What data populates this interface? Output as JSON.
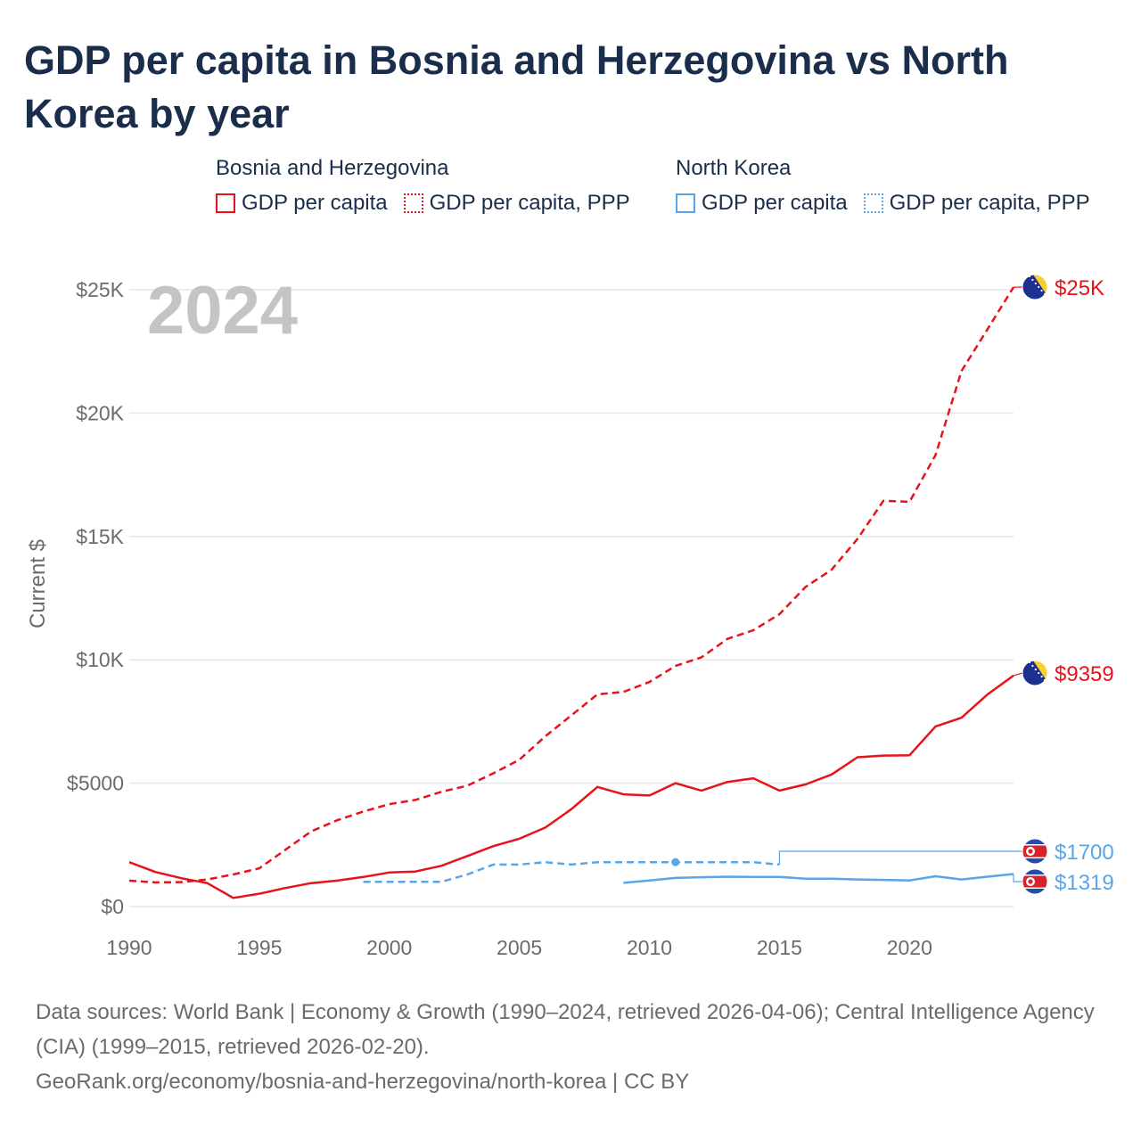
{
  "title": "GDP per capita in Bosnia and Herzegovina vs North Korea by year",
  "legend": {
    "groups": [
      {
        "country": "Bosnia and Herzegovina",
        "color": "#e8121a",
        "items": [
          {
            "label": "GDP per capita",
            "style": "solid"
          },
          {
            "label": "GDP per capita, PPP",
            "style": "dotted"
          }
        ]
      },
      {
        "country": "North Korea",
        "color": "#5aa5e8",
        "items": [
          {
            "label": "GDP per capita",
            "style": "solid"
          },
          {
            "label": "GDP per capita, PPP",
            "style": "dotted"
          }
        ]
      }
    ]
  },
  "chart_data": {
    "type": "line",
    "year_label": "2024",
    "ylabel": "Current $",
    "xlim": [
      1990,
      2024
    ],
    "ylim": [
      0,
      25000
    ],
    "x_ticks": [
      1990,
      1995,
      2000,
      2005,
      2010,
      2015,
      2020
    ],
    "x_tick_labels": [
      "1990",
      "1995",
      "2000",
      "2005",
      "2010",
      "2015",
      "2020"
    ],
    "y_ticks": [
      0,
      5000,
      10000,
      15000,
      20000,
      25000
    ],
    "y_tick_labels": [
      "$0",
      "$5000",
      "$10K",
      "$15K",
      "$20K",
      "$25K"
    ],
    "grid": true,
    "series": [
      {
        "name": "Bosnia and Herzegovina — GDP per capita, PPP",
        "color": "#e8121a",
        "dash": true,
        "end_label": "$25K",
        "flag": "bosnia-flag",
        "points": [
          [
            1990,
            1050
          ],
          [
            1991,
            980
          ],
          [
            1992,
            990
          ],
          [
            1993,
            1100
          ],
          [
            1994,
            1300
          ],
          [
            1995,
            1550
          ],
          [
            1996,
            2300
          ],
          [
            1997,
            3050
          ],
          [
            1998,
            3500
          ],
          [
            1999,
            3850
          ],
          [
            2000,
            4150
          ],
          [
            2001,
            4320
          ],
          [
            2002,
            4650
          ],
          [
            2003,
            4900
          ],
          [
            2004,
            5400
          ],
          [
            2005,
            5950
          ],
          [
            2006,
            6900
          ],
          [
            2007,
            7750
          ],
          [
            2008,
            8600
          ],
          [
            2009,
            8700
          ],
          [
            2010,
            9100
          ],
          [
            2011,
            9750
          ],
          [
            2012,
            10100
          ],
          [
            2013,
            10850
          ],
          [
            2014,
            11200
          ],
          [
            2015,
            11850
          ],
          [
            2016,
            12950
          ],
          [
            2017,
            13650
          ],
          [
            2018,
            14900
          ],
          [
            2019,
            16450
          ],
          [
            2020,
            16400
          ],
          [
            2021,
            18300
          ],
          [
            2022,
            21700
          ],
          [
            2023,
            23400
          ],
          [
            2024,
            25100
          ]
        ]
      },
      {
        "name": "Bosnia and Herzegovina — GDP per capita",
        "color": "#e8121a",
        "dash": false,
        "end_label": "$9359",
        "flag": "bosnia-flag",
        "points": [
          [
            1990,
            1800
          ],
          [
            1991,
            1400
          ],
          [
            1992,
            1150
          ],
          [
            1993,
            950
          ],
          [
            1994,
            350
          ],
          [
            1995,
            520
          ],
          [
            1996,
            750
          ],
          [
            1997,
            950
          ],
          [
            1998,
            1050
          ],
          [
            1999,
            1200
          ],
          [
            2000,
            1380
          ],
          [
            2001,
            1420
          ],
          [
            2002,
            1650
          ],
          [
            2003,
            2050
          ],
          [
            2004,
            2450
          ],
          [
            2005,
            2750
          ],
          [
            2006,
            3200
          ],
          [
            2007,
            3950
          ],
          [
            2008,
            4850
          ],
          [
            2009,
            4550
          ],
          [
            2010,
            4500
          ],
          [
            2011,
            5000
          ],
          [
            2012,
            4700
          ],
          [
            2013,
            5050
          ],
          [
            2014,
            5200
          ],
          [
            2015,
            4700
          ],
          [
            2016,
            4950
          ],
          [
            2017,
            5350
          ],
          [
            2018,
            6050
          ],
          [
            2019,
            6120
          ],
          [
            2020,
            6130
          ],
          [
            2021,
            7300
          ],
          [
            2022,
            7650
          ],
          [
            2023,
            8600
          ],
          [
            2024,
            9359
          ]
        ]
      },
      {
        "name": "North Korea — GDP per capita, PPP",
        "color": "#5aa5e8",
        "dash": true,
        "end_label": "$1700",
        "flag": "north-korea-flag",
        "highlight_x": 2011,
        "points": [
          [
            1999,
            1000
          ],
          [
            2000,
            1000
          ],
          [
            2001,
            1000
          ],
          [
            2002,
            1000
          ],
          [
            2003,
            1300
          ],
          [
            2004,
            1700
          ],
          [
            2005,
            1700
          ],
          [
            2006,
            1800
          ],
          [
            2007,
            1700
          ],
          [
            2008,
            1800
          ],
          [
            2009,
            1800
          ],
          [
            2010,
            1800
          ],
          [
            2011,
            1800
          ],
          [
            2012,
            1800
          ],
          [
            2013,
            1800
          ],
          [
            2014,
            1800
          ],
          [
            2015,
            1700
          ]
        ]
      },
      {
        "name": "North Korea — GDP per capita",
        "color": "#5aa5e8",
        "dash": false,
        "end_label": "$1319",
        "flag": "north-korea-flag",
        "points": [
          [
            2009,
            960
          ],
          [
            2010,
            1060
          ],
          [
            2011,
            1160
          ],
          [
            2012,
            1190
          ],
          [
            2013,
            1210
          ],
          [
            2014,
            1200
          ],
          [
            2015,
            1200
          ],
          [
            2016,
            1130
          ],
          [
            2017,
            1130
          ],
          [
            2018,
            1100
          ],
          [
            2019,
            1080
          ],
          [
            2020,
            1060
          ],
          [
            2021,
            1230
          ],
          [
            2022,
            1100
          ],
          [
            2023,
            1210
          ],
          [
            2024,
            1319
          ]
        ]
      }
    ]
  },
  "footer": {
    "sources": "Data sources: World Bank | Economy & Growth (1990–2024, retrieved 2026-04-06); Central Intelligence Agency (CIA) (1999–2015, retrieved 2026-02-20).",
    "url": "GeoRank.org/economy/bosnia-and-herzegovina/north-korea | CC BY"
  }
}
